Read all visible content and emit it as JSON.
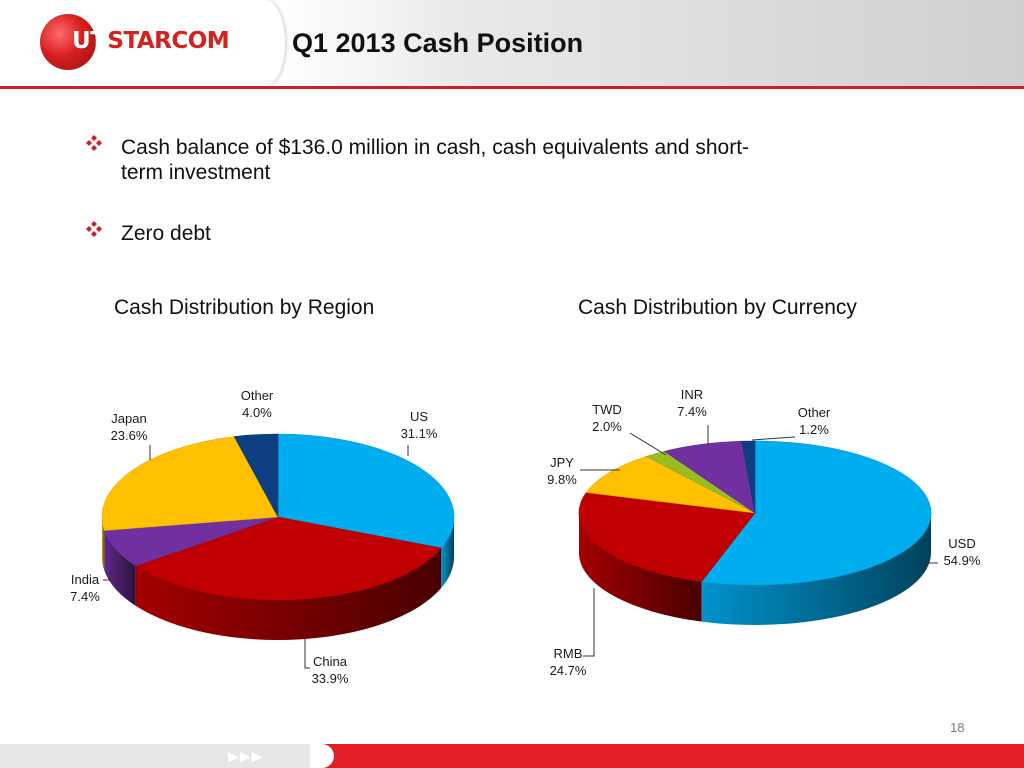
{
  "header": {
    "logo_text_left": "UT",
    "logo_text_right": "STARCOM",
    "title": "Q1 2013 Cash Position"
  },
  "bullets": [
    {
      "line1": "Cash balance of $136.0 million in cash, cash equivalents and short-",
      "line2": "term investment"
    },
    {
      "line1": "Zero debt",
      "line2": ""
    }
  ],
  "page_number": "18",
  "footer": {
    "arrows": "▶▶▶"
  },
  "colors": {
    "blue": "#00adef",
    "red": "#c00000",
    "purple": "#7030a0",
    "gold": "#ffc000",
    "navy": "#0d3f80",
    "lime": "#9bbb22",
    "accent_red": "#c91f25"
  },
  "chart_data": [
    {
      "type": "pie",
      "title": "Cash Distribution by Region",
      "categories": [
        "US",
        "China",
        "India",
        "Japan",
        "Other"
      ],
      "values": [
        31.1,
        33.9,
        7.4,
        23.6,
        4.0
      ],
      "value_labels": [
        "31.1%",
        "33.9%",
        "7.4%",
        "23.6%",
        "4.0%"
      ],
      "colors": [
        "#00adef",
        "#c00000",
        "#7030a0",
        "#ffc000",
        "#0d3f80"
      ]
    },
    {
      "type": "pie",
      "title": "Cash Distribution by Currency",
      "categories": [
        "USD",
        "RMB",
        "JPY",
        "TWD",
        "INR",
        "Other"
      ],
      "values": [
        54.9,
        24.7,
        9.8,
        2.0,
        7.4,
        1.2
      ],
      "value_labels": [
        "54.9%",
        "24.7%",
        "9.8%",
        "2.0%",
        "7.4%",
        "1.2%"
      ],
      "colors": [
        "#00adef",
        "#c00000",
        "#ffc000",
        "#9bbb22",
        "#7030a0",
        "#0d3f80"
      ]
    }
  ]
}
